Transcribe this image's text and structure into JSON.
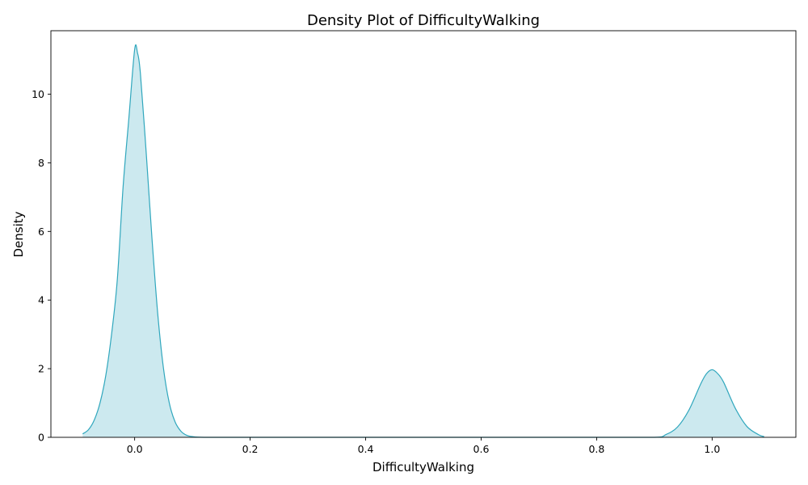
{
  "chart_data": {
    "type": "area",
    "title": "Density Plot of DifficultyWalking",
    "xlabel": "DifficultyWalking",
    "ylabel": "Density",
    "xlim": [
      -0.145,
      1.145
    ],
    "ylim": [
      0,
      11.85
    ],
    "xticks": [
      0.0,
      0.2,
      0.4,
      0.6,
      0.8,
      1.0
    ],
    "xtick_labels": [
      "0.0",
      "0.2",
      "0.4",
      "0.6",
      "0.8",
      "1.0"
    ],
    "yticks": [
      0,
      2,
      4,
      6,
      8,
      10
    ],
    "ytick_labels": [
      "0",
      "2",
      "4",
      "6",
      "8",
      "10"
    ],
    "grid": false,
    "legend": "none",
    "series": [
      {
        "color": "#30a7bd",
        "fill_color": "#cce9ef",
        "points": [
          [
            -0.09,
            0.1
          ],
          [
            -0.08,
            0.22
          ],
          [
            -0.07,
            0.5
          ],
          [
            -0.06,
            1.0
          ],
          [
            -0.05,
            1.8
          ],
          [
            -0.04,
            3.0
          ],
          [
            -0.03,
            4.6
          ],
          [
            -0.02,
            7.3
          ],
          [
            -0.01,
            9.3
          ],
          [
            0.0,
            11.3
          ],
          [
            0.005,
            11.2
          ],
          [
            0.01,
            10.6
          ],
          [
            0.02,
            8.3
          ],
          [
            0.03,
            5.8
          ],
          [
            0.04,
            3.6
          ],
          [
            0.05,
            2.0
          ],
          [
            0.06,
            1.0
          ],
          [
            0.07,
            0.45
          ],
          [
            0.08,
            0.18
          ],
          [
            0.09,
            0.06
          ],
          [
            0.1,
            0.02
          ],
          [
            0.12,
            0.0
          ],
          [
            0.2,
            0.0
          ],
          [
            0.4,
            0.0
          ],
          [
            0.6,
            0.0
          ],
          [
            0.8,
            0.0
          ],
          [
            0.9,
            0.0
          ],
          [
            0.92,
            0.08
          ],
          [
            0.94,
            0.3
          ],
          [
            0.96,
            0.8
          ],
          [
            0.98,
            1.55
          ],
          [
            0.99,
            1.85
          ],
          [
            1.0,
            1.97
          ],
          [
            1.01,
            1.85
          ],
          [
            1.02,
            1.6
          ],
          [
            1.04,
            0.85
          ],
          [
            1.06,
            0.32
          ],
          [
            1.08,
            0.08
          ],
          [
            1.09,
            0.02
          ]
        ]
      }
    ]
  }
}
